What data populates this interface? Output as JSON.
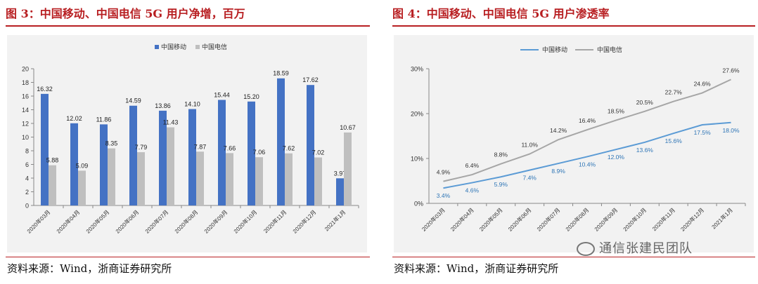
{
  "figures": [
    {
      "title": "图 3：中国移动、中国电信 5G 用户净增，百万",
      "source": "资料来源：Wind，浙商证券研究所"
    },
    {
      "title": "图 4：中国移动、中国电信 5G 用户渗透率",
      "source": "资料来源：Wind，浙商证券研究所"
    }
  ],
  "watermark": "通信张建民团队",
  "colors": {
    "title_red": "#b81f22",
    "blue": "#4472c4",
    "gray": "#bfbfbf",
    "line_blue": "#5b9bd5",
    "line_gray": "#a6a6a6",
    "label_blue": "#2e75b6"
  },
  "chart_data": [
    {
      "type": "bar",
      "categories": [
        "2020年03月",
        "2020年04月",
        "2020年05月",
        "2020年06月",
        "2020年07月",
        "2020年08月",
        "2020年09月",
        "2020年10月",
        "2020年11月",
        "2020年12月",
        "2021年1月"
      ],
      "series": [
        {
          "name": "中国移动",
          "values": [
            16.32,
            12.02,
            11.86,
            14.59,
            13.86,
            14.1,
            15.44,
            15.2,
            18.59,
            17.62,
            3.97
          ],
          "labels": [
            "16.32",
            "12.02",
            "11.86",
            "14.59",
            "13.86",
            "14.10",
            "15.44",
            "15.20",
            "18.59",
            "17.62",
            "3.97"
          ]
        },
        {
          "name": "中国电信",
          "values": [
            5.88,
            5.09,
            8.35,
            7.79,
            11.43,
            7.87,
            7.66,
            7.06,
            7.62,
            7.02,
            10.67
          ],
          "labels": [
            "5.88",
            "5.09",
            "8.35",
            "7.79",
            "11.43",
            "7.87",
            "7.66",
            "7.06",
            "7.62",
            "7.02",
            "10.67"
          ]
        }
      ],
      "ylim": [
        0,
        20
      ],
      "yticks": [
        "0",
        "2",
        "4",
        "6",
        "8",
        "10",
        "12",
        "14",
        "16",
        "18",
        "20"
      ],
      "legend": "top-center",
      "grid": false
    },
    {
      "type": "line",
      "categories": [
        "2020年03月",
        "2020年04月",
        "2020年05月",
        "2020年06月",
        "2020年07月",
        "2020年08月",
        "2020年09月",
        "2020年10月",
        "2020年11月",
        "2020年12月",
        "2021年1月"
      ],
      "series": [
        {
          "name": "中国移动",
          "values": [
            3.4,
            4.6,
            5.9,
            7.4,
            8.9,
            10.4,
            12.0,
            13.6,
            15.6,
            17.5,
            18.0
          ],
          "labels": [
            "3.4%",
            "4.6%",
            "5.9%",
            "7.4%",
            "8.9%",
            "10.4%",
            "12.0%",
            "13.6%",
            "15.6%",
            "17.5%",
            "18.0%"
          ]
        },
        {
          "name": "中国电信",
          "values": [
            4.9,
            6.4,
            8.8,
            11.0,
            14.2,
            16.4,
            18.5,
            20.5,
            22.7,
            24.6,
            27.6
          ],
          "labels": [
            "4.9%",
            "6.4%",
            "8.8%",
            "11.0%",
            "14.2%",
            "16.4%",
            "18.5%",
            "20.5%",
            "22.7%",
            "24.6%",
            "27.6%"
          ]
        }
      ],
      "ylim": [
        0,
        30
      ],
      "yticks": [
        "0%",
        "10%",
        "20%",
        "30%"
      ],
      "legend": "top-left",
      "grid": false
    }
  ]
}
